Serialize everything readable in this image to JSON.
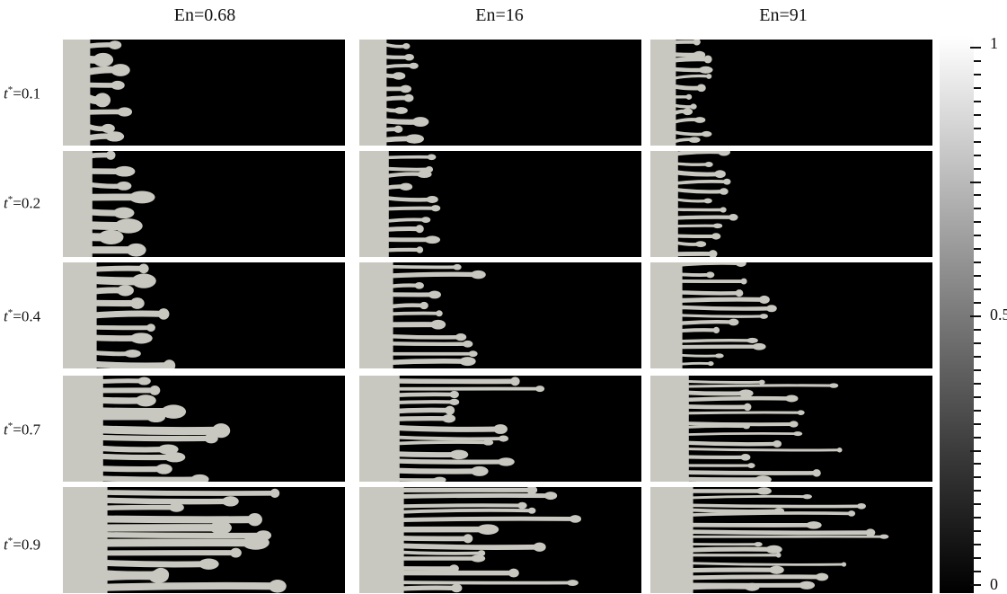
{
  "columns": [
    {
      "label": "En=0.68"
    },
    {
      "label": "En=16"
    },
    {
      "label": "En=91"
    }
  ],
  "rows": [
    {
      "prefix": "t",
      "sup": "*",
      "value": "=0.1",
      "progress": 0.1
    },
    {
      "prefix": "t",
      "sup": "*",
      "value": "=0.2",
      "progress": 0.2
    },
    {
      "prefix": "t",
      "sup": "*",
      "value": "=0.4",
      "progress": 0.4
    },
    {
      "prefix": "t",
      "sup": "*",
      "value": "=0.7",
      "progress": 0.7
    },
    {
      "prefix": "t",
      "sup": "*",
      "value": "=0.9",
      "progress": 0.9
    }
  ],
  "colorbar": {
    "max_label": "1",
    "mid_label": "0.5",
    "min_label": "0",
    "range": [
      0,
      1
    ]
  },
  "colors": {
    "fluid_light": "#c9c8c0",
    "fluid_dark": "#000000"
  }
}
